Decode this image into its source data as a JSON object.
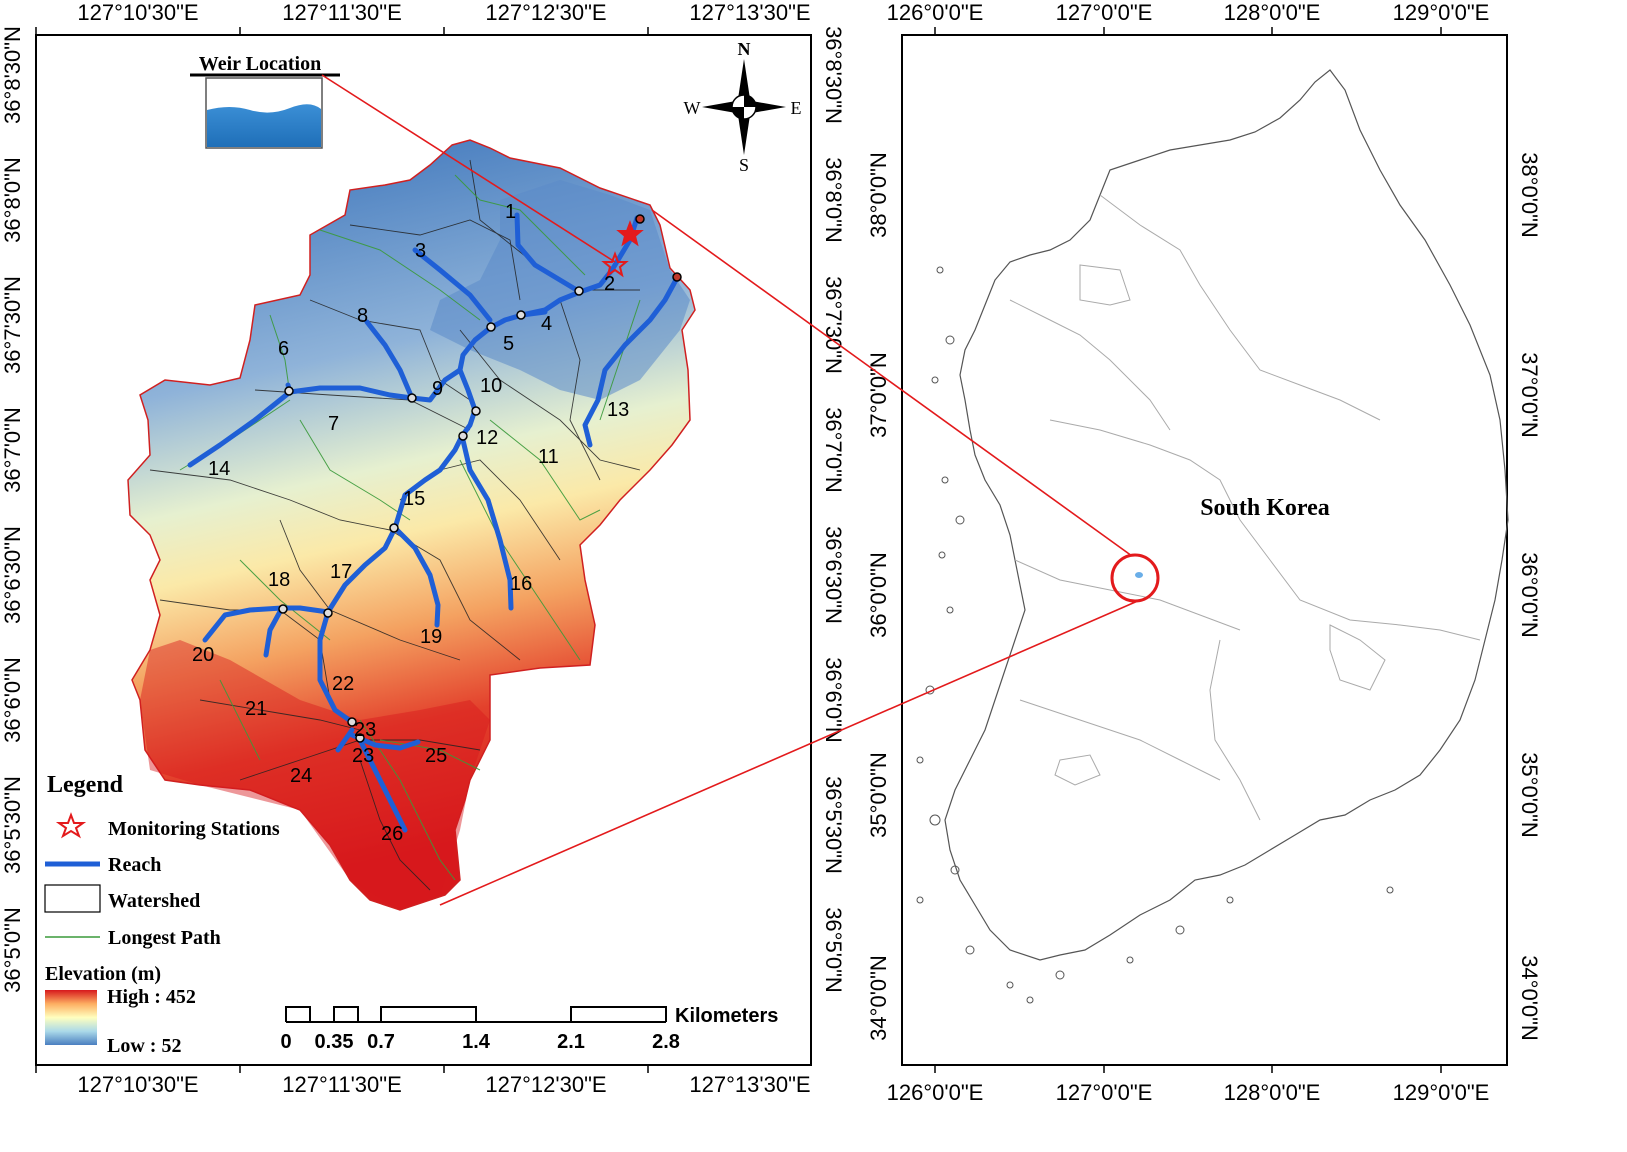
{
  "left_map": {
    "top_ticks": [
      "127°10'30\"E",
      "127°11'30\"E",
      "127°12'30\"E",
      "127°13'30\"E"
    ],
    "bottom_ticks": [
      "127°10'30\"E",
      "127°11'30\"E",
      "127°12'30\"E",
      "127°13'30\"E"
    ],
    "left_ticks": [
      "36°8'30\"N",
      "36°8'0\"N",
      "36°7'30\"N",
      "36°7'0\"N",
      "36°6'30\"N",
      "36°6'0\"N",
      "36°5'30\"N",
      "36°5'0\"N"
    ],
    "right_ticks": [
      "36°8'30\"N",
      "36°8'0\"N",
      "36°7'30\"N",
      "36°7'0\"N",
      "36°6'30\"N",
      "36°6'0\"N",
      "36°5'30\"N",
      "36°5'0\"N"
    ],
    "weir_label": "Weir Location",
    "compass": {
      "n": "N",
      "s": "S",
      "e": "E",
      "w": "W"
    },
    "subbasins": [
      "1",
      "2",
      "3",
      "4",
      "5",
      "6",
      "7",
      "8",
      "9",
      "10",
      "11",
      "12",
      "13",
      "14",
      "15",
      "16",
      "17",
      "18",
      "19",
      "20",
      "21",
      "22",
      "23",
      "23",
      "24",
      "25",
      "26"
    ],
    "legend": {
      "title": "Legend",
      "monitoring": "Monitoring Stations",
      "reach": "Reach",
      "watershed": "Watershed",
      "longest_path": "Longest Path",
      "elevation_title": "Elevation (m)",
      "high": "High : 452",
      "low": "Low : 52"
    },
    "scale": {
      "labels": [
        "0",
        "0.35",
        "0.7",
        "1.4",
        "2.1",
        "2.8"
      ],
      "unit": "Kilometers"
    },
    "colors": {
      "reach": "#1f5fd6",
      "high": "#d7191c",
      "mid": "#ffffbf",
      "low": "#2b83ba",
      "star": "#e31a1c"
    }
  },
  "right_map": {
    "top_ticks": [
      "126°0'0\"E",
      "127°0'0\"E",
      "128°0'0\"E",
      "129°0'0\"E"
    ],
    "bottom_ticks": [
      "126°0'0\"E",
      "127°0'0\"E",
      "128°0'0\"E",
      "129°0'0\"E"
    ],
    "left_ticks": [
      "38°0'0\"N",
      "37°0'0\"N",
      "36°0'0\"N",
      "35°0'0\"N",
      "34°0'0\"N"
    ],
    "right_ticks": [
      "38°0'0\"N",
      "37°0'0\"N",
      "36°0'0\"N",
      "35°0'0\"N",
      "34°0'0\"N"
    ],
    "country_label": "South Korea"
  }
}
